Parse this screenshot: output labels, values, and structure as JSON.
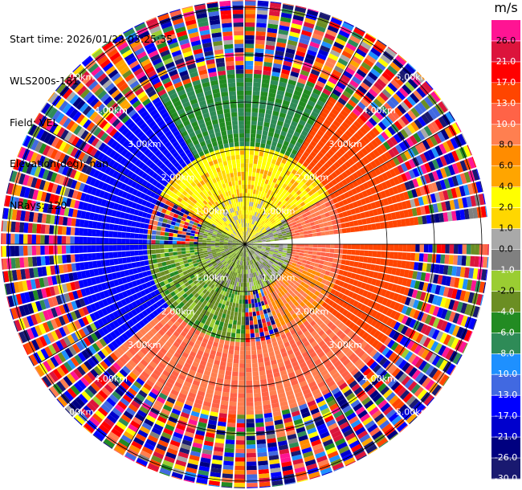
{
  "header": {
    "start_time": "Start time: 2026/01/23 03:25:35",
    "instrument": "WLS200s-181",
    "field": "Field: VEL",
    "elevation": "Elevation(deg): nan",
    "nrays": "NRays: 120"
  },
  "colorbar": {
    "unit": "m/s",
    "levels": [
      "-30.0",
      "-26.0",
      "-21.0",
      "-17.0",
      "-13.0",
      "-10.0",
      "-8.0",
      "-6.0",
      "-4.0",
      "-2.0",
      "-1.0",
      "0.0",
      "1.0",
      "2.0",
      "4.0",
      "6.0",
      "8.0",
      "10.0",
      "13.0",
      "17.0",
      "21.0",
      "26.0"
    ],
    "colors": [
      "#191970",
      "#000080",
      "#0000cd",
      "#0000ff",
      "#4169e1",
      "#1e90ff",
      "#2e8b57",
      "#228b22",
      "#6b8e23",
      "#9acd32",
      "#808080",
      "#a9a9a9",
      "#ffd700",
      "#ffff00",
      "#ffa500",
      "#ff8c00",
      "#ff7f50",
      "#ff6347",
      "#ff4500",
      "#ff0000",
      "#dc143c",
      "#ff1493"
    ]
  },
  "chart_data": {
    "type": "heatmap",
    "title": "",
    "projection": "polar (PPI)",
    "field": "VEL",
    "nrays": 120,
    "range_rings_km": [
      1.0,
      2.0,
      3.0,
      4.0,
      5.0
    ],
    "ring_labels": [
      "1.00km",
      "2.00km",
      "3.00km",
      "4.00km",
      "5.00km"
    ],
    "max_range_km": 5.15,
    "spokes_deg": [
      0,
      30,
      60,
      90,
      120,
      150,
      180,
      210,
      240,
      270,
      300,
      330
    ],
    "missing_wedge_deg": [
      84,
      90
    ],
    "velocity_pattern": [
      {
        "range_km": [
          0.0,
          1.0
        ],
        "azimuth_deg": [
          0,
          60
        ],
        "velocity_ms": 2.0
      },
      {
        "range_km": [
          0.0,
          1.0
        ],
        "azimuth_deg": [
          60,
          180
        ],
        "velocity_ms": -1.0
      },
      {
        "range_km": [
          0.0,
          1.0
        ],
        "azimuth_deg": [
          180,
          300
        ],
        "velocity_ms": -2.0
      },
      {
        "range_km": [
          0.0,
          1.0
        ],
        "azimuth_deg": [
          300,
          360
        ],
        "velocity_ms": 2.0
      },
      {
        "range_km": [
          1.0,
          2.1
        ],
        "azimuth_deg": [
          300,
          60
        ],
        "velocity_ms": 3.0
      },
      {
        "range_km": [
          1.0,
          2.1
        ],
        "azimuth_deg": [
          60,
          110
        ],
        "velocity_ms": 10.0
      },
      {
        "range_km": [
          1.0,
          2.1
        ],
        "azimuth_deg": [
          110,
          160
        ],
        "velocity_ms": 8.0
      },
      {
        "range_km": [
          1.0,
          2.1
        ],
        "azimuth_deg": [
          180,
          270
        ],
        "velocity_ms": -3.0
      },
      {
        "range_km": [
          2.1,
          3.6
        ],
        "azimuth_deg": [
          330,
          30
        ],
        "velocity_ms": -6.0
      },
      {
        "range_km": [
          2.1,
          3.6
        ],
        "azimuth_deg": [
          30,
          130
        ],
        "velocity_ms": 15.0
      },
      {
        "range_km": [
          2.1,
          3.6
        ],
        "azimuth_deg": [
          130,
          230
        ],
        "velocity_ms": 10.0
      },
      {
        "range_km": [
          2.1,
          3.6
        ],
        "azimuth_deg": [
          230,
          330
        ],
        "velocity_ms": -15.0
      },
      {
        "range_km": [
          3.6,
          5.15
        ],
        "azimuth_deg": [
          0,
          360
        ],
        "velocity_ms": "noise (-30 to 26)"
      }
    ]
  }
}
